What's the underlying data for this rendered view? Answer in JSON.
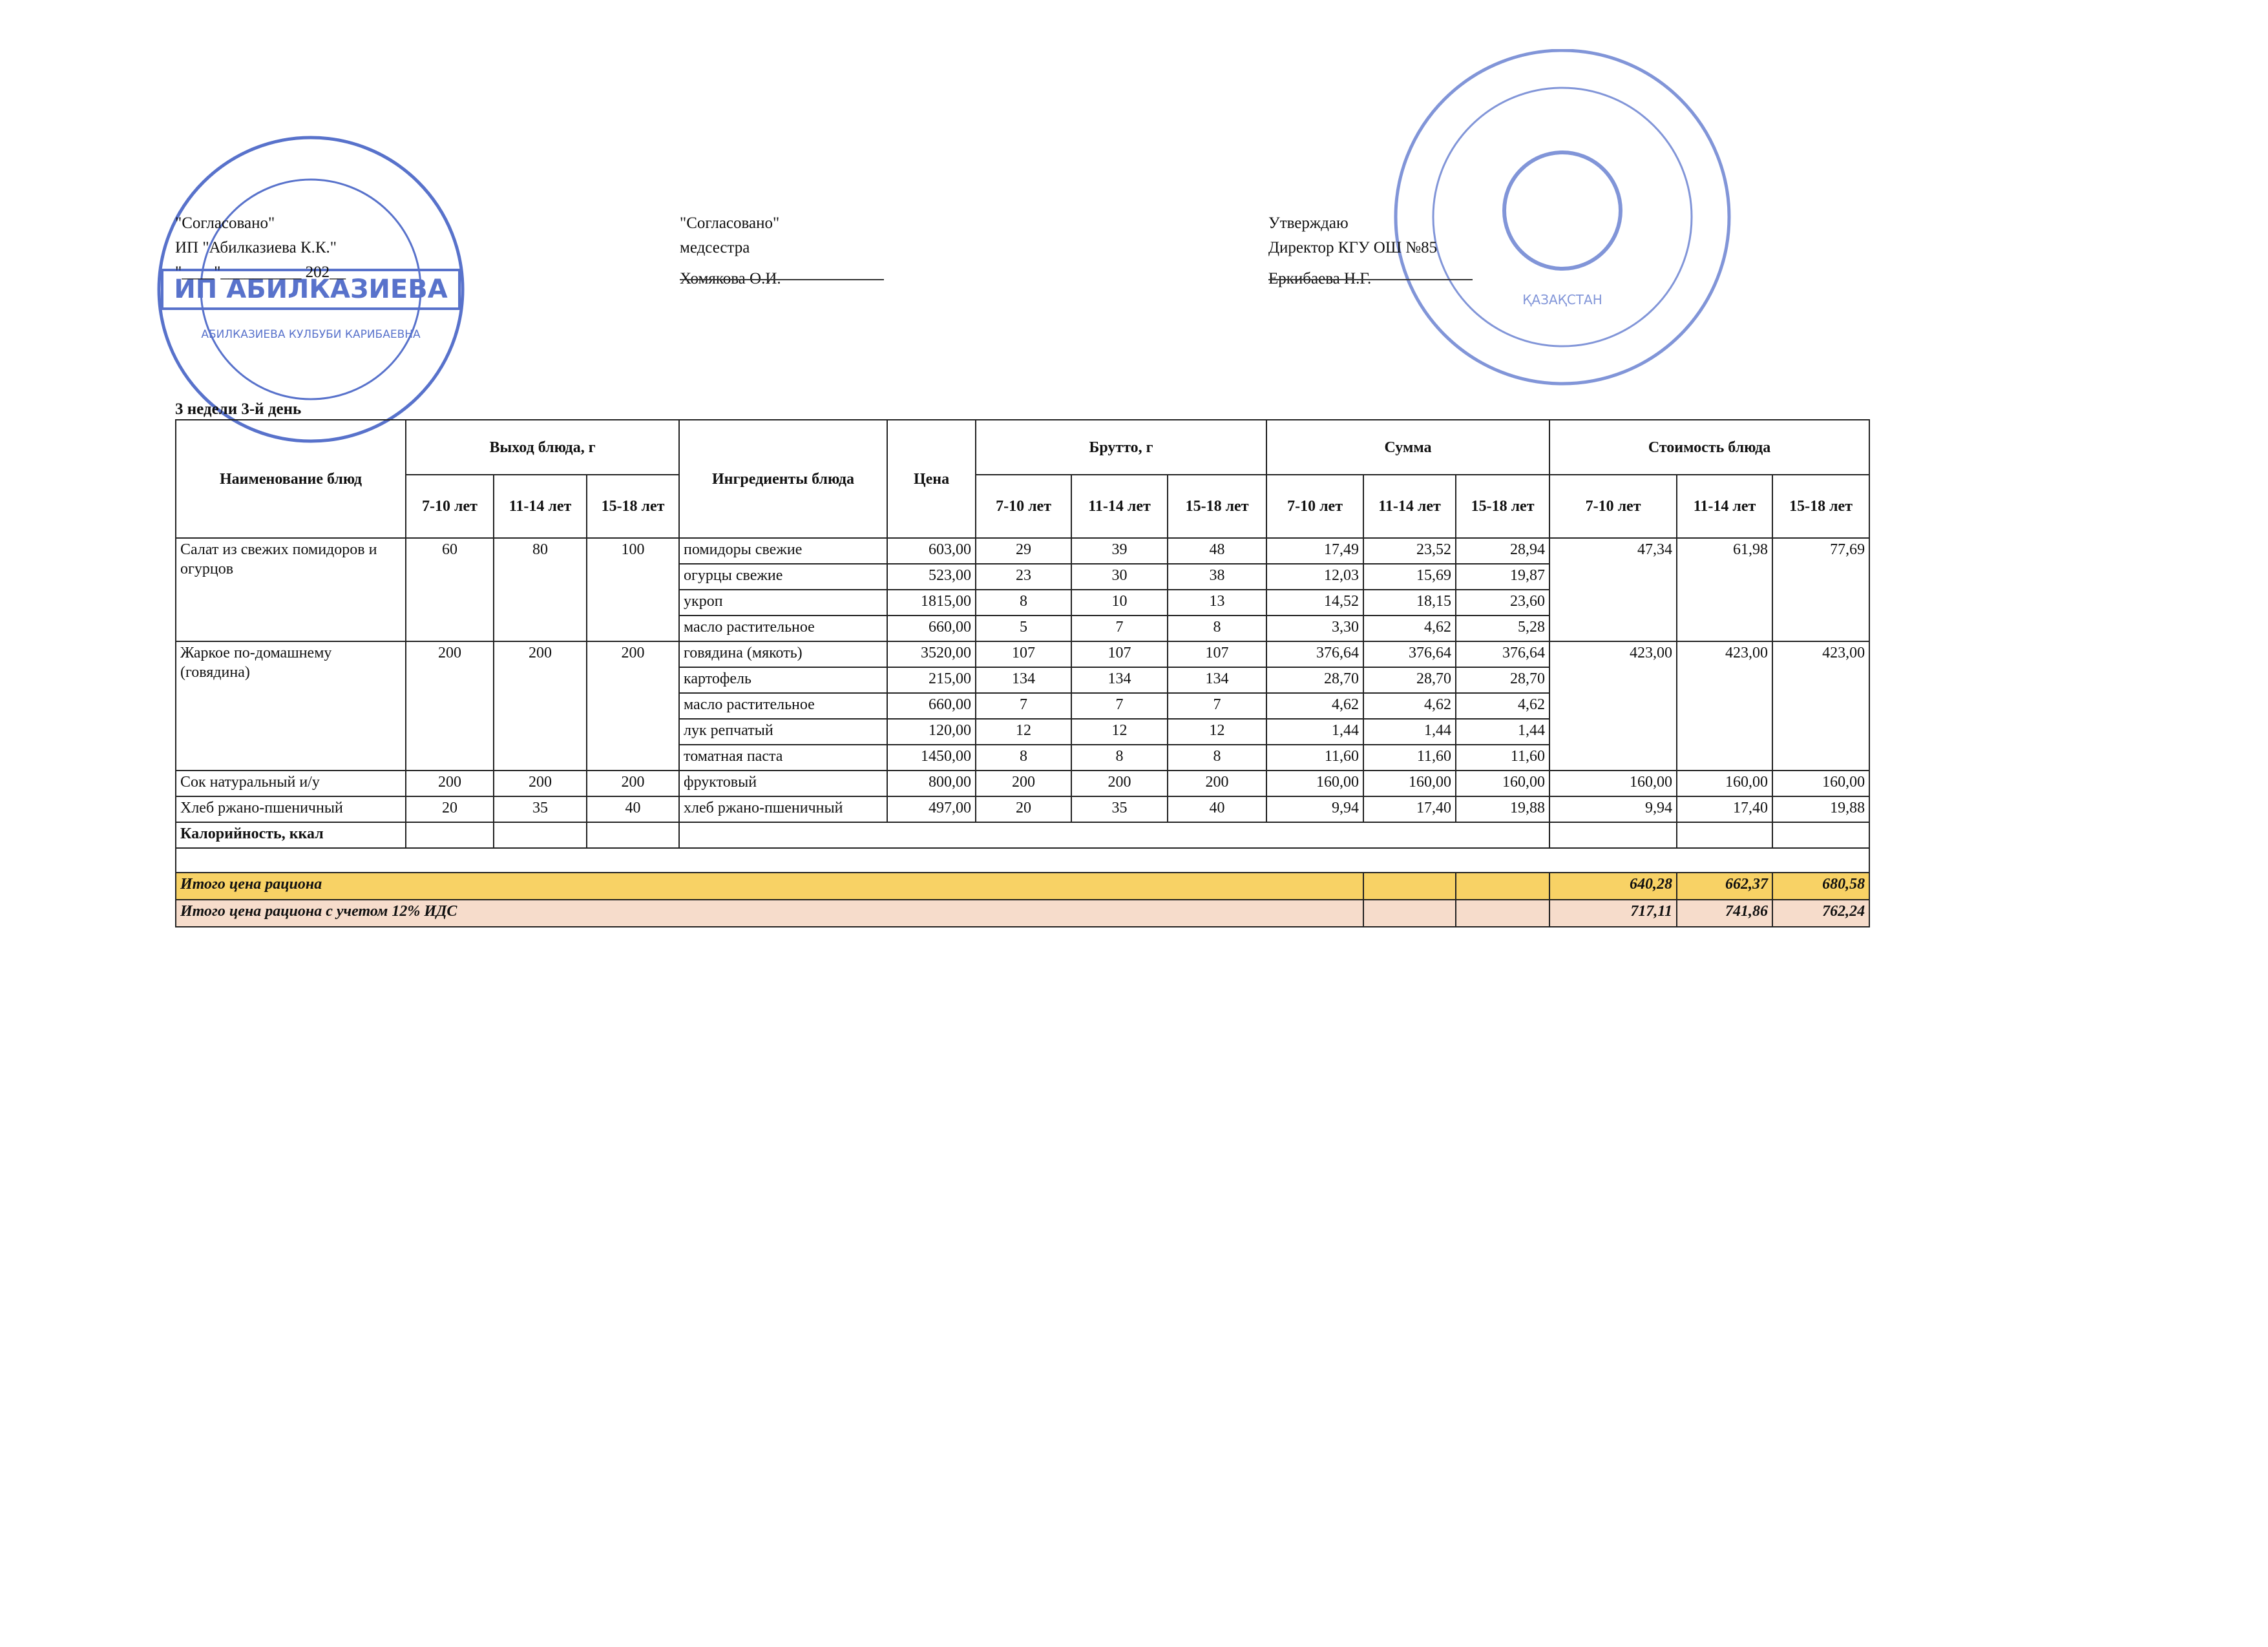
{
  "header": {
    "left": [
      "\"Согласовано\"",
      "ИП \"Абилказиева К.К.\"",
      "\"____\"__________ 202__"
    ],
    "middle": [
      "\"Согласовано\"",
      "медсестра",
      "Хомякова О.И."
    ],
    "right": [
      "Утверждаю",
      "Директор КГУ ОШ №85",
      "Еркибаева Н.Г."
    ]
  },
  "stamps": {
    "left": [
      "ИП АБИЛКАЗИЕВА",
      "АБИЛКАЗИЕВА КУЛБУБИ КАРИБАЕВНА"
    ],
    "right": [
      "ҚАЗАҚСТАН"
    ]
  },
  "subtitle": "3 недели 3-й день",
  "table": {
    "head": {
      "name": "Наименование блюд",
      "output": {
        "title": "Выход блюда, г",
        "ages": [
          "7-10 лет",
          "11-14 лет",
          "15-18 лет"
        ]
      },
      "ingredients": "Ингредиенты блюда",
      "price": "Цена",
      "brutto": {
        "title": "Брутто, г",
        "ages": [
          "7-10 лет",
          "11-14 лет",
          "15-18 лет"
        ]
      },
      "sum": {
        "title": "Сумма",
        "ages": [
          "7-10 лет",
          "11-14 лет",
          "15-18 лет"
        ]
      },
      "cost": {
        "title": "Стоимость блюда",
        "ages": [
          "7-10 лет",
          "11-14 лет",
          "15-18 лет"
        ]
      }
    },
    "dishes": [
      {
        "name": "Салат из свежих помидоров и огурцов",
        "output": [
          "60",
          "80",
          "100"
        ],
        "cost": [
          "47,34",
          "61,98",
          "77,69"
        ],
        "ingredients": [
          {
            "name": "помидоры свежие",
            "price": "603,00",
            "brutto": [
              "29",
              "39",
              "48"
            ],
            "sum": [
              "17,49",
              "23,52",
              "28,94"
            ]
          },
          {
            "name": "огурцы свежие",
            "price": "523,00",
            "brutto": [
              "23",
              "30",
              "38"
            ],
            "sum": [
              "12,03",
              "15,69",
              "19,87"
            ]
          },
          {
            "name": "укроп",
            "price": "1815,00",
            "brutto": [
              "8",
              "10",
              "13"
            ],
            "sum": [
              "14,52",
              "18,15",
              "23,60"
            ]
          },
          {
            "name": "масло растительное",
            "price": "660,00",
            "brutto": [
              "5",
              "7",
              "8"
            ],
            "sum": [
              "3,30",
              "4,62",
              "5,28"
            ]
          }
        ]
      },
      {
        "name": "Жаркое по-домашнему (говядина)",
        "output": [
          "200",
          "200",
          "200"
        ],
        "cost": [
          "423,00",
          "423,00",
          "423,00"
        ],
        "ingredients": [
          {
            "name": "говядина (мякоть)",
            "price": "3520,00",
            "brutto": [
              "107",
              "107",
              "107"
            ],
            "sum": [
              "376,64",
              "376,64",
              "376,64"
            ]
          },
          {
            "name": "картофель",
            "price": "215,00",
            "brutto": [
              "134",
              "134",
              "134"
            ],
            "sum": [
              "28,70",
              "28,70",
              "28,70"
            ]
          },
          {
            "name": "масло растительное",
            "price": "660,00",
            "brutto": [
              "7",
              "7",
              "7"
            ],
            "sum": [
              "4,62",
              "4,62",
              "4,62"
            ]
          },
          {
            "name": "лук репчатый",
            "price": "120,00",
            "brutto": [
              "12",
              "12",
              "12"
            ],
            "sum": [
              "1,44",
              "1,44",
              "1,44"
            ]
          },
          {
            "name": "томатная паста",
            "price": "1450,00",
            "brutto": [
              "8",
              "8",
              "8"
            ],
            "sum": [
              "11,60",
              "11,60",
              "11,60"
            ]
          }
        ]
      },
      {
        "name": "Сок натуральный и/у",
        "output": [
          "200",
          "200",
          "200"
        ],
        "cost": [
          "160,00",
          "160,00",
          "160,00"
        ],
        "ingredients": [
          {
            "name": "фруктовый",
            "price": "800,00",
            "brutto": [
              "200",
              "200",
              "200"
            ],
            "sum": [
              "160,00",
              "160,00",
              "160,00"
            ]
          }
        ]
      },
      {
        "name": "Хлеб ржано-пшеничный",
        "output": [
          "20",
          "35",
          "40"
        ],
        "cost": [
          "9,94",
          "17,40",
          "19,88"
        ],
        "ingredients": [
          {
            "name": "хлеб ржано-пшеничный",
            "price": "497,00",
            "brutto": [
              "20",
              "35",
              "40"
            ],
            "sum": [
              "9,94",
              "17,40",
              "19,88"
            ]
          }
        ]
      }
    ],
    "calories": "Калорийность, ккал",
    "totals": [
      {
        "label": "Итого цена рациона",
        "values": [
          "640,28",
          "662,37",
          "680,58"
        ]
      },
      {
        "label": "Итого цена рациона с учетом 12% ИДС",
        "values": [
          "717,11",
          "741,86",
          "762,24"
        ]
      }
    ]
  }
}
